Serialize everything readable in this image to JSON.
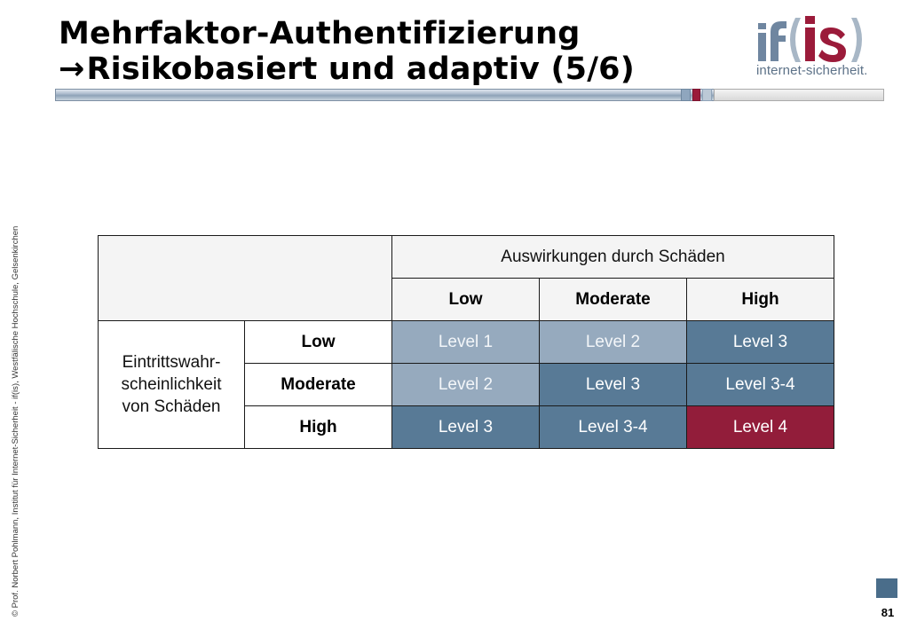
{
  "slide": {
    "title_line1": "Mehrfaktor-Authentifizierung",
    "title_arrow": "→",
    "title_line2": "Risikobasiert und adaptiv (5/6)"
  },
  "logo": {
    "wordmark": "if(is)",
    "text": "internet-sicherheit.",
    "colors": {
      "if": "#6f86a0",
      "is": "#9b1b3a",
      "brackets": "#a8b7c6"
    }
  },
  "copyright": "© Prof.  Norbert Pohlmann, Institut für Internet-Sicherheit - if(is), Westfälische Hochschule, Gelsenkirchen",
  "matrix": {
    "column_group_header": "Auswirkungen durch Schäden",
    "row_group_header": "Eintrittswahr-\nscheinlichkeit\nvon Schäden",
    "row_group_lines": [
      "Eintrittswahr-",
      "scheinlichkeit",
      "von Schäden"
    ],
    "columns": [
      "Low",
      "Moderate",
      "High"
    ],
    "rows": [
      {
        "label": "Low",
        "cells": [
          "Level 1",
          "Level 2",
          "Level 3"
        ]
      },
      {
        "label": "Moderate",
        "cells": [
          "Level 2",
          "Level 3",
          "Level 3-4"
        ]
      },
      {
        "label": "High",
        "cells": [
          "Level 3",
          "Level 3-4",
          "Level 4"
        ]
      }
    ],
    "colors": {
      "light": "#96aabe",
      "medium": "#587a96",
      "critical": "#921d3a",
      "header_bg": "#f4f4f4"
    }
  },
  "page_number": "81"
}
